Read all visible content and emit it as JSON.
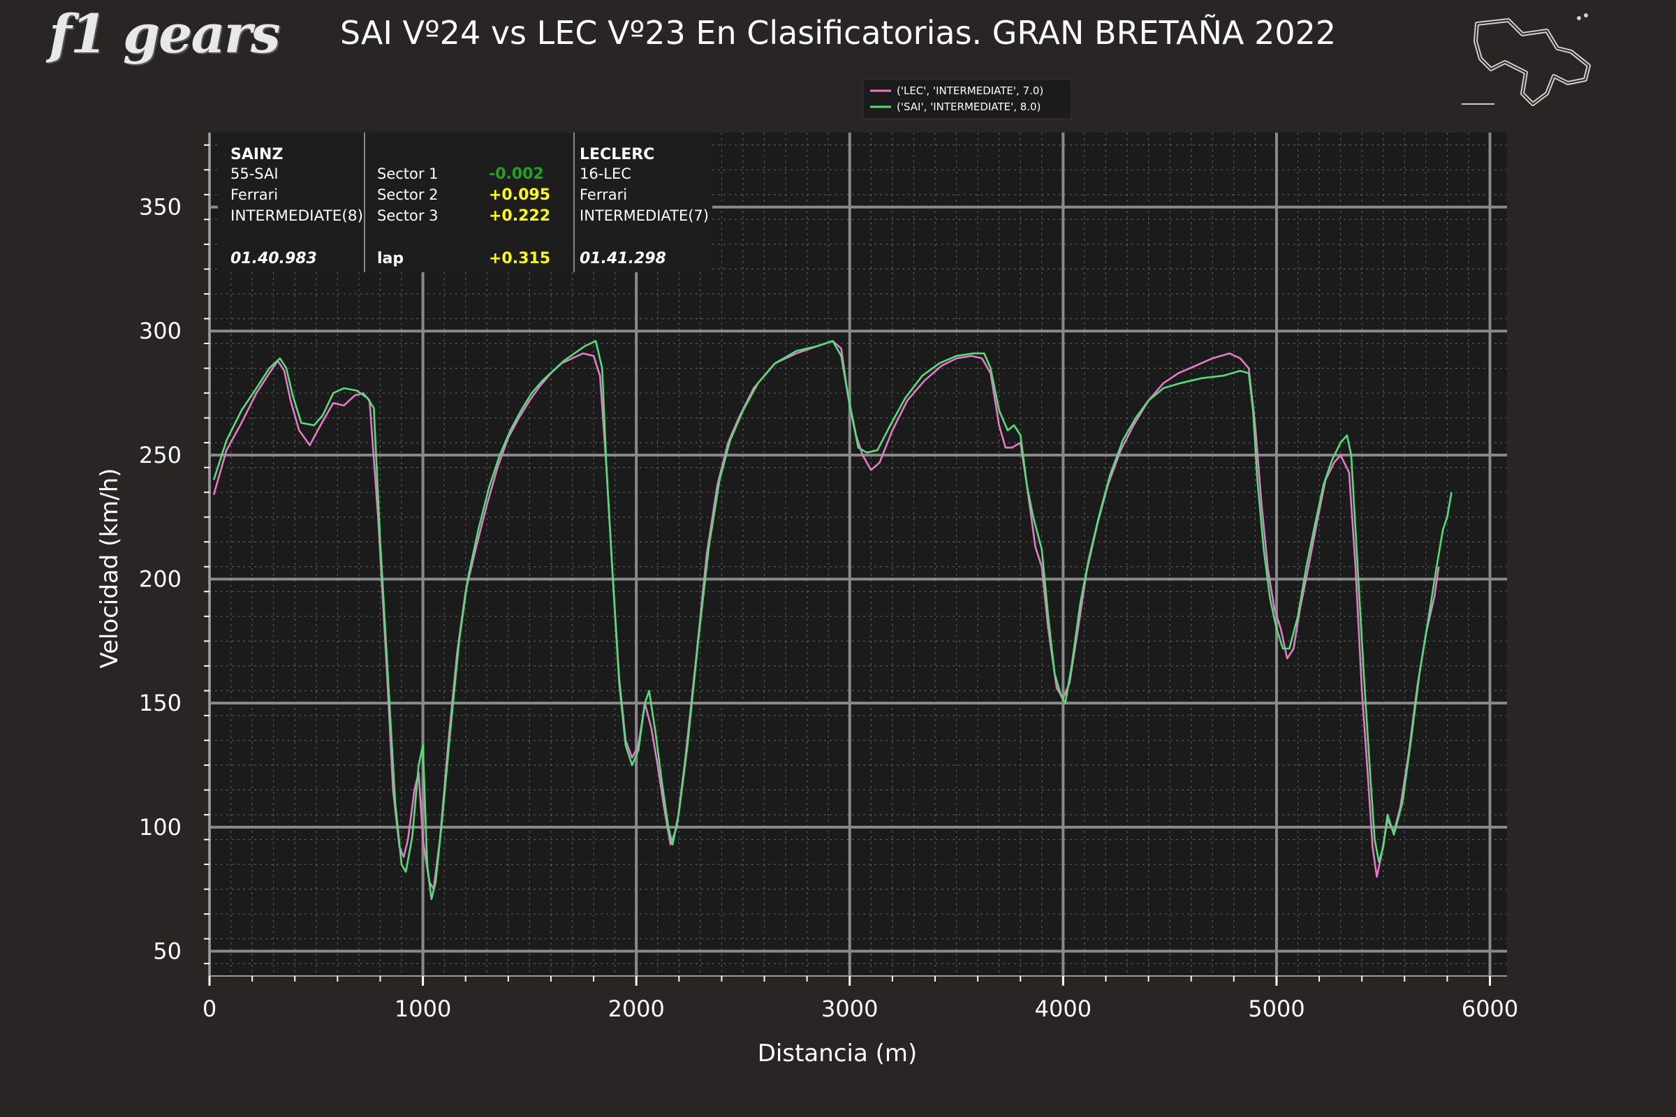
{
  "brand": {
    "logo_text": "f1 gears"
  },
  "title": "SAI Vº24 vs LEC Vº23 En Clasificatorias. GRAN BRETAÑA 2022",
  "info_box": {
    "driver1": {
      "name": "SAINZ",
      "code": "55-SAI",
      "team": "Ferrari",
      "tyre": "INTERMEDIATE(8)",
      "laptime": "01.40.983"
    },
    "driver2": {
      "name": "LECLERC",
      "code": "16-LEC",
      "team": "Ferrari",
      "tyre": "INTERMEDIATE(7)",
      "laptime": "01.41.298"
    },
    "sectors": [
      {
        "label": "Sector 1",
        "delta": "-0.002",
        "color": "#1fa31f"
      },
      {
        "label": "Sector 2",
        "delta": "+0.095",
        "color": "#ffff00"
      },
      {
        "label": "Sector 3",
        "delta": "+0.222",
        "color": "#ffff00"
      }
    ],
    "lap": {
      "label": "lap",
      "delta": "+0.315",
      "color": "#ffff00"
    }
  },
  "chart_data": {
    "type": "line",
    "title": "SAI Vº24 vs LEC Vº23 En Clasificatorias. GRAN BRETAÑA 2022",
    "xlabel": "Distancia (m)",
    "ylabel": "Velocidad (km/h)",
    "xlim": [
      0,
      6080
    ],
    "ylim": [
      40,
      380
    ],
    "x_ticks": [
      0,
      1000,
      2000,
      3000,
      4000,
      5000,
      6000
    ],
    "y_ticks": [
      50,
      100,
      150,
      200,
      250,
      300,
      350
    ],
    "grid": true,
    "legend_position": "top-right (above plot)",
    "series": [
      {
        "name": "('LEC', 'INTERMEDIATE', 7.0)",
        "color": "#e879c9",
        "points": [
          [
            20,
            234
          ],
          [
            80,
            252
          ],
          [
            150,
            263
          ],
          [
            220,
            275
          ],
          [
            280,
            283
          ],
          [
            320,
            288
          ],
          [
            350,
            284
          ],
          [
            380,
            272
          ],
          [
            420,
            260
          ],
          [
            470,
            254
          ],
          [
            520,
            262
          ],
          [
            580,
            271
          ],
          [
            630,
            270
          ],
          [
            680,
            274
          ],
          [
            720,
            275
          ],
          [
            750,
            272
          ],
          [
            790,
            225
          ],
          [
            830,
            165
          ],
          [
            860,
            115
          ],
          [
            890,
            92
          ],
          [
            910,
            88
          ],
          [
            930,
            95
          ],
          [
            960,
            115
          ],
          [
            980,
            122
          ],
          [
            1000,
            95
          ],
          [
            1030,
            78
          ],
          [
            1050,
            75
          ],
          [
            1080,
            95
          ],
          [
            1120,
            135
          ],
          [
            1160,
            170
          ],
          [
            1200,
            195
          ],
          [
            1250,
            213
          ],
          [
            1300,
            230
          ],
          [
            1350,
            245
          ],
          [
            1400,
            257
          ],
          [
            1450,
            265
          ],
          [
            1500,
            272
          ],
          [
            1550,
            278
          ],
          [
            1600,
            283
          ],
          [
            1650,
            287
          ],
          [
            1700,
            289
          ],
          [
            1750,
            291
          ],
          [
            1800,
            290
          ],
          [
            1830,
            282
          ],
          [
            1860,
            245
          ],
          [
            1890,
            200
          ],
          [
            1920,
            160
          ],
          [
            1950,
            135
          ],
          [
            1980,
            128
          ],
          [
            2010,
            133
          ],
          [
            2040,
            150
          ],
          [
            2070,
            140
          ],
          [
            2100,
            125
          ],
          [
            2130,
            108
          ],
          [
            2160,
            93
          ],
          [
            2190,
            100
          ],
          [
            2230,
            128
          ],
          [
            2280,
            168
          ],
          [
            2330,
            210
          ],
          [
            2380,
            238
          ],
          [
            2430,
            255
          ],
          [
            2480,
            265
          ],
          [
            2550,
            277
          ],
          [
            2650,
            287
          ],
          [
            2750,
            291
          ],
          [
            2850,
            294
          ],
          [
            2920,
            296
          ],
          [
            2960,
            293
          ],
          [
            2990,
            275
          ],
          [
            3030,
            258
          ],
          [
            3060,
            250
          ],
          [
            3100,
            244
          ],
          [
            3140,
            247
          ],
          [
            3200,
            260
          ],
          [
            3270,
            272
          ],
          [
            3350,
            280
          ],
          [
            3430,
            286
          ],
          [
            3500,
            289
          ],
          [
            3570,
            290
          ],
          [
            3620,
            289
          ],
          [
            3660,
            283
          ],
          [
            3700,
            262
          ],
          [
            3730,
            253
          ],
          [
            3760,
            253
          ],
          [
            3800,
            255
          ],
          [
            3830,
            238
          ],
          [
            3870,
            213
          ],
          [
            3900,
            205
          ],
          [
            3930,
            180
          ],
          [
            3970,
            156
          ],
          [
            4000,
            152
          ],
          [
            4030,
            158
          ],
          [
            4070,
            180
          ],
          [
            4110,
            203
          ],
          [
            4160,
            222
          ],
          [
            4210,
            238
          ],
          [
            4270,
            252
          ],
          [
            4330,
            262
          ],
          [
            4400,
            272
          ],
          [
            4470,
            279
          ],
          [
            4540,
            283
          ],
          [
            4620,
            286
          ],
          [
            4700,
            289
          ],
          [
            4780,
            291
          ],
          [
            4830,
            289
          ],
          [
            4870,
            285
          ],
          [
            4900,
            262
          ],
          [
            4930,
            230
          ],
          [
            4960,
            204
          ],
          [
            4990,
            188
          ],
          [
            5020,
            180
          ],
          [
            5050,
            168
          ],
          [
            5080,
            172
          ],
          [
            5110,
            188
          ],
          [
            5150,
            205
          ],
          [
            5190,
            223
          ],
          [
            5230,
            240
          ],
          [
            5270,
            247
          ],
          [
            5300,
            250
          ],
          [
            5340,
            243
          ],
          [
            5370,
            205
          ],
          [
            5400,
            155
          ],
          [
            5430,
            118
          ],
          [
            5450,
            92
          ],
          [
            5470,
            80
          ],
          [
            5490,
            88
          ],
          [
            5520,
            103
          ],
          [
            5550,
            98
          ],
          [
            5580,
            108
          ],
          [
            5620,
            130
          ],
          [
            5660,
            157
          ],
          [
            5700,
            178
          ],
          [
            5740,
            193
          ],
          [
            5760,
            205
          ]
        ]
      },
      {
        "name": "('SAI', 'INTERMEDIATE', 8.0)",
        "color": "#50e07a",
        "points": [
          [
            20,
            240
          ],
          [
            80,
            256
          ],
          [
            150,
            268
          ],
          [
            220,
            277
          ],
          [
            280,
            285
          ],
          [
            330,
            289
          ],
          [
            360,
            285
          ],
          [
            390,
            274
          ],
          [
            430,
            263
          ],
          [
            490,
            262
          ],
          [
            530,
            266
          ],
          [
            580,
            275
          ],
          [
            630,
            277
          ],
          [
            690,
            276
          ],
          [
            740,
            273
          ],
          [
            770,
            269
          ],
          [
            800,
            215
          ],
          [
            840,
            155
          ],
          [
            870,
            110
          ],
          [
            900,
            85
          ],
          [
            920,
            82
          ],
          [
            950,
            96
          ],
          [
            980,
            125
          ],
          [
            1000,
            133
          ],
          [
            1020,
            85
          ],
          [
            1040,
            71
          ],
          [
            1060,
            78
          ],
          [
            1090,
            103
          ],
          [
            1130,
            140
          ],
          [
            1170,
            175
          ],
          [
            1210,
            200
          ],
          [
            1260,
            220
          ],
          [
            1310,
            237
          ],
          [
            1360,
            250
          ],
          [
            1410,
            260
          ],
          [
            1460,
            268
          ],
          [
            1510,
            275
          ],
          [
            1560,
            280
          ],
          [
            1610,
            284
          ],
          [
            1660,
            288
          ],
          [
            1710,
            291
          ],
          [
            1760,
            294
          ],
          [
            1810,
            296
          ],
          [
            1840,
            285
          ],
          [
            1860,
            245
          ],
          [
            1890,
            200
          ],
          [
            1920,
            158
          ],
          [
            1950,
            133
          ],
          [
            1980,
            125
          ],
          [
            2010,
            131
          ],
          [
            2040,
            150
          ],
          [
            2060,
            155
          ],
          [
            2090,
            138
          ],
          [
            2120,
            118
          ],
          [
            2150,
            100
          ],
          [
            2170,
            93
          ],
          [
            2200,
            106
          ],
          [
            2240,
            133
          ],
          [
            2290,
            175
          ],
          [
            2340,
            213
          ],
          [
            2390,
            240
          ],
          [
            2440,
            256
          ],
          [
            2500,
            268
          ],
          [
            2570,
            279
          ],
          [
            2650,
            287
          ],
          [
            2750,
            292
          ],
          [
            2850,
            294
          ],
          [
            2920,
            296
          ],
          [
            2960,
            290
          ],
          [
            3000,
            270
          ],
          [
            3040,
            253
          ],
          [
            3080,
            251
          ],
          [
            3130,
            252
          ],
          [
            3190,
            262
          ],
          [
            3260,
            273
          ],
          [
            3340,
            282
          ],
          [
            3420,
            287
          ],
          [
            3500,
            290
          ],
          [
            3580,
            291
          ],
          [
            3630,
            291
          ],
          [
            3660,
            285
          ],
          [
            3700,
            268
          ],
          [
            3740,
            260
          ],
          [
            3770,
            262
          ],
          [
            3800,
            258
          ],
          [
            3830,
            238
          ],
          [
            3860,
            225
          ],
          [
            3900,
            212
          ],
          [
            3930,
            185
          ],
          [
            3960,
            162
          ],
          [
            3990,
            153
          ],
          [
            4010,
            150
          ],
          [
            4040,
            165
          ],
          [
            4080,
            190
          ],
          [
            4120,
            208
          ],
          [
            4170,
            226
          ],
          [
            4220,
            242
          ],
          [
            4280,
            256
          ],
          [
            4340,
            265
          ],
          [
            4400,
            272
          ],
          [
            4470,
            277
          ],
          [
            4550,
            279
          ],
          [
            4650,
            281
          ],
          [
            4750,
            282
          ],
          [
            4830,
            284
          ],
          [
            4870,
            283
          ],
          [
            4890,
            268
          ],
          [
            4910,
            240
          ],
          [
            4940,
            212
          ],
          [
            4970,
            192
          ],
          [
            5000,
            180
          ],
          [
            5030,
            172
          ],
          [
            5060,
            172
          ],
          [
            5100,
            185
          ],
          [
            5140,
            205
          ],
          [
            5180,
            222
          ],
          [
            5220,
            238
          ],
          [
            5260,
            248
          ],
          [
            5300,
            255
          ],
          [
            5330,
            258
          ],
          [
            5350,
            250
          ],
          [
            5380,
            205
          ],
          [
            5410,
            160
          ],
          [
            5440,
            120
          ],
          [
            5460,
            95
          ],
          [
            5480,
            86
          ],
          [
            5500,
            92
          ],
          [
            5520,
            105
          ],
          [
            5550,
            97
          ],
          [
            5590,
            110
          ],
          [
            5630,
            135
          ],
          [
            5670,
            162
          ],
          [
            5710,
            183
          ],
          [
            5750,
            205
          ],
          [
            5780,
            220
          ],
          [
            5800,
            225
          ],
          [
            5820,
            235
          ]
        ]
      }
    ]
  }
}
